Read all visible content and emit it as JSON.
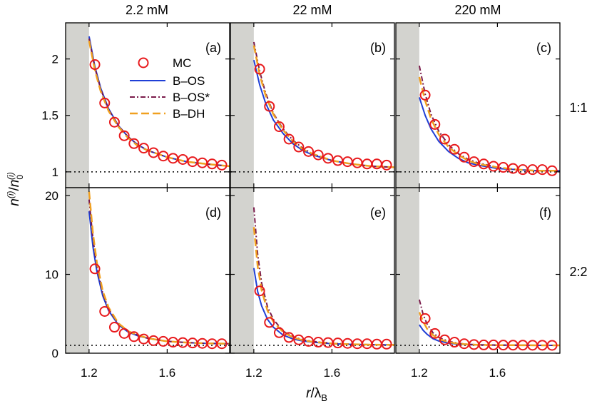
{
  "figure": {
    "column_titles": [
      "2.2 mM",
      "22 mM",
      "220 mM"
    ],
    "row_labels": [
      "1:1",
      "2:2"
    ],
    "ylabel": "n(i)/n0(i)",
    "xlabel": "r/λB",
    "legend": [
      "MC",
      "B–OS",
      "B–OS*",
      "B–DH"
    ]
  },
  "colors": {
    "MC": "#e8191c",
    "B-OS": "#1f3fd6",
    "B-OS*": "#7a1a4a",
    "B-DH": "#f0a020",
    "excluded_region": "#d3d3cf",
    "reference_line": "#000000"
  },
  "chart_data": [
    {
      "type": "line",
      "panel": "(a)",
      "column": "2.2 mM",
      "row": "1:1",
      "xlim": [
        1.08,
        1.92
      ],
      "ylim": [
        0.86,
        2.32
      ],
      "xticks": [
        1.2,
        1.6
      ],
      "yticks": [
        1,
        1.5,
        2
      ],
      "excluded_x": [
        1.08,
        1.2
      ],
      "reference_y": 1,
      "series": [
        {
          "name": "MC",
          "style": "circles",
          "x": [
            1.23,
            1.28,
            1.33,
            1.38,
            1.43,
            1.48,
            1.53,
            1.58,
            1.63,
            1.68,
            1.73,
            1.78,
            1.83,
            1.88
          ],
          "y": [
            1.95,
            1.61,
            1.44,
            1.32,
            1.25,
            1.21,
            1.17,
            1.14,
            1.12,
            1.11,
            1.09,
            1.08,
            1.07,
            1.06
          ]
        },
        {
          "name": "B–OS",
          "style": "solid",
          "x": [
            1.2,
            1.23,
            1.26,
            1.3,
            1.35,
            1.4,
            1.45,
            1.5,
            1.6,
            1.7,
            1.8,
            1.92
          ],
          "y": [
            2.2,
            1.93,
            1.74,
            1.56,
            1.41,
            1.31,
            1.24,
            1.19,
            1.13,
            1.09,
            1.07,
            1.05
          ]
        },
        {
          "name": "B–OS*",
          "style": "dashdot",
          "x": [
            1.2,
            1.23,
            1.26,
            1.3,
            1.35,
            1.4,
            1.45,
            1.5,
            1.6,
            1.7,
            1.8,
            1.92
          ],
          "y": [
            2.18,
            1.92,
            1.73,
            1.55,
            1.41,
            1.31,
            1.24,
            1.19,
            1.13,
            1.09,
            1.07,
            1.05
          ]
        },
        {
          "name": "B–DH",
          "style": "dashed",
          "x": [
            1.2,
            1.23,
            1.26,
            1.3,
            1.35,
            1.4,
            1.45,
            1.5,
            1.6,
            1.7,
            1.8,
            1.92
          ],
          "y": [
            2.16,
            1.9,
            1.71,
            1.54,
            1.4,
            1.3,
            1.23,
            1.19,
            1.13,
            1.09,
            1.07,
            1.05
          ]
        }
      ]
    },
    {
      "type": "line",
      "panel": "(b)",
      "column": "22 mM",
      "row": "1:1",
      "xlim": [
        1.08,
        1.92
      ],
      "ylim": [
        0.86,
        2.32
      ],
      "xticks": [
        1.2,
        1.6
      ],
      "yticks": [
        1,
        1.5,
        2
      ],
      "excluded_x": [
        1.08,
        1.2
      ],
      "reference_y": 1,
      "series": [
        {
          "name": "MC",
          "style": "circles",
          "x": [
            1.23,
            1.28,
            1.33,
            1.38,
            1.43,
            1.48,
            1.53,
            1.58,
            1.63,
            1.68,
            1.73,
            1.78,
            1.83,
            1.88
          ],
          "y": [
            1.91,
            1.58,
            1.4,
            1.29,
            1.22,
            1.18,
            1.15,
            1.12,
            1.1,
            1.09,
            1.08,
            1.07,
            1.07,
            1.06
          ]
        },
        {
          "name": "B–OS",
          "style": "solid",
          "x": [
            1.2,
            1.23,
            1.26,
            1.3,
            1.35,
            1.4,
            1.45,
            1.5,
            1.6,
            1.7,
            1.8,
            1.92
          ],
          "y": [
            1.99,
            1.77,
            1.61,
            1.46,
            1.34,
            1.25,
            1.19,
            1.15,
            1.1,
            1.07,
            1.05,
            1.04
          ]
        },
        {
          "name": "B–OS*",
          "style": "dashdot",
          "x": [
            1.2,
            1.23,
            1.26,
            1.3,
            1.35,
            1.4,
            1.45,
            1.5,
            1.6,
            1.7,
            1.8,
            1.92
          ],
          "y": [
            2.15,
            1.89,
            1.7,
            1.52,
            1.38,
            1.28,
            1.21,
            1.16,
            1.1,
            1.07,
            1.05,
            1.04
          ]
        },
        {
          "name": "B–DH",
          "style": "dashed",
          "x": [
            1.2,
            1.23,
            1.26,
            1.3,
            1.35,
            1.4,
            1.45,
            1.5,
            1.6,
            1.7,
            1.8,
            1.92
          ],
          "y": [
            2.12,
            1.86,
            1.68,
            1.51,
            1.37,
            1.27,
            1.2,
            1.16,
            1.1,
            1.07,
            1.05,
            1.04
          ]
        }
      ]
    },
    {
      "type": "line",
      "panel": "(c)",
      "column": "220 mM",
      "row": "1:1",
      "xlim": [
        1.08,
        1.92
      ],
      "ylim": [
        0.86,
        2.32
      ],
      "xticks": [
        1.2,
        1.6
      ],
      "yticks": [
        1,
        1.5,
        2
      ],
      "excluded_x": [
        1.08,
        1.2
      ],
      "reference_y": 1,
      "series": [
        {
          "name": "MC",
          "style": "circles",
          "x": [
            1.23,
            1.28,
            1.33,
            1.38,
            1.43,
            1.48,
            1.53,
            1.58,
            1.63,
            1.68,
            1.73,
            1.78,
            1.83,
            1.88
          ],
          "y": [
            1.68,
            1.42,
            1.29,
            1.2,
            1.13,
            1.09,
            1.07,
            1.05,
            1.04,
            1.03,
            1.02,
            1.02,
            1.02,
            1.01
          ]
        },
        {
          "name": "B–OS",
          "style": "solid",
          "x": [
            1.2,
            1.23,
            1.26,
            1.3,
            1.35,
            1.4,
            1.45,
            1.5,
            1.6,
            1.7,
            1.8,
            1.92
          ],
          "y": [
            1.66,
            1.5,
            1.38,
            1.27,
            1.18,
            1.12,
            1.08,
            1.06,
            1.03,
            1.02,
            1.01,
            1.01
          ]
        },
        {
          "name": "B–OS*",
          "style": "dashdot",
          "x": [
            1.2,
            1.23,
            1.26,
            1.3,
            1.35,
            1.4,
            1.45,
            1.5,
            1.6,
            1.7,
            1.8,
            1.92
          ],
          "y": [
            1.94,
            1.69,
            1.51,
            1.36,
            1.24,
            1.16,
            1.11,
            1.08,
            1.04,
            1.02,
            1.01,
            1.01
          ]
        },
        {
          "name": "B–DH",
          "style": "dashed",
          "x": [
            1.2,
            1.23,
            1.26,
            1.3,
            1.35,
            1.4,
            1.45,
            1.5,
            1.6,
            1.7,
            1.8,
            1.92
          ],
          "y": [
            1.84,
            1.63,
            1.47,
            1.33,
            1.22,
            1.15,
            1.1,
            1.07,
            1.04,
            1.02,
            1.01,
            1.01
          ]
        }
      ]
    },
    {
      "type": "line",
      "panel": "(d)",
      "column": "2.2 mM",
      "row": "2:2",
      "xlim": [
        1.08,
        1.92
      ],
      "ylim": [
        0,
        21
      ],
      "xticks": [
        1.2,
        1.6
      ],
      "yticks": [
        0,
        10,
        20
      ],
      "excluded_x": [
        1.08,
        1.2
      ],
      "reference_y": 1,
      "series": [
        {
          "name": "MC",
          "style": "circles",
          "x": [
            1.23,
            1.28,
            1.33,
            1.38,
            1.43,
            1.48,
            1.53,
            1.58,
            1.63,
            1.68,
            1.73,
            1.78,
            1.83,
            1.88
          ],
          "y": [
            10.7,
            5.3,
            3.3,
            2.5,
            2.1,
            1.8,
            1.6,
            1.5,
            1.4,
            1.35,
            1.3,
            1.25,
            1.2,
            1.2
          ]
        },
        {
          "name": "B–OS",
          "style": "solid",
          "x": [
            1.2,
            1.22,
            1.24,
            1.27,
            1.3,
            1.35,
            1.4,
            1.45,
            1.5,
            1.6,
            1.7,
            1.8,
            1.92
          ],
          "y": [
            18,
            13.5,
            10.4,
            7.3,
            5.4,
            3.6,
            2.7,
            2.2,
            1.9,
            1.5,
            1.35,
            1.25,
            1.2
          ]
        },
        {
          "name": "B–OS*",
          "style": "dashdot",
          "x": [
            1.2,
            1.22,
            1.24,
            1.27,
            1.3,
            1.35,
            1.4,
            1.45,
            1.5,
            1.6,
            1.7,
            1.8,
            1.92
          ],
          "y": [
            19.5,
            14.5,
            11,
            7.6,
            5.6,
            3.7,
            2.8,
            2.3,
            1.9,
            1.5,
            1.35,
            1.25,
            1.2
          ]
        },
        {
          "name": "B–DH",
          "style": "dashed",
          "x": [
            1.2,
            1.22,
            1.24,
            1.27,
            1.3,
            1.35,
            1.4,
            1.45,
            1.5,
            1.6,
            1.7,
            1.8,
            1.92
          ],
          "y": [
            20.5,
            15.2,
            11.5,
            7.9,
            5.8,
            3.8,
            2.8,
            2.3,
            1.9,
            1.5,
            1.35,
            1.25,
            1.2
          ]
        }
      ]
    },
    {
      "type": "line",
      "panel": "(e)",
      "column": "22 mM",
      "row": "2:2",
      "xlim": [
        1.08,
        1.92
      ],
      "ylim": [
        0,
        21
      ],
      "xticks": [
        1.2,
        1.6
      ],
      "yticks": [
        0,
        10,
        20
      ],
      "excluded_x": [
        1.08,
        1.2
      ],
      "reference_y": 1,
      "series": [
        {
          "name": "MC",
          "style": "circles",
          "x": [
            1.23,
            1.28,
            1.33,
            1.38,
            1.43,
            1.48,
            1.53,
            1.58,
            1.63,
            1.68,
            1.73,
            1.78,
            1.83,
            1.88
          ],
          "y": [
            7.9,
            3.9,
            2.6,
            2.0,
            1.7,
            1.5,
            1.4,
            1.35,
            1.3,
            1.25,
            1.2,
            1.2,
            1.15,
            1.15
          ]
        },
        {
          "name": "B–OS",
          "style": "solid",
          "x": [
            1.2,
            1.22,
            1.24,
            1.27,
            1.3,
            1.35,
            1.4,
            1.45,
            1.5,
            1.6,
            1.7,
            1.8,
            1.92
          ],
          "y": [
            10.8,
            7.8,
            6,
            4.3,
            3.3,
            2.3,
            1.8,
            1.55,
            1.4,
            1.2,
            1.12,
            1.08,
            1.05
          ]
        },
        {
          "name": "B–OS*",
          "style": "dashdot",
          "x": [
            1.2,
            1.22,
            1.24,
            1.27,
            1.3,
            1.35,
            1.4,
            1.45,
            1.5,
            1.6,
            1.7,
            1.8,
            1.92
          ],
          "y": [
            18.5,
            12.5,
            8.9,
            5.9,
            4.3,
            2.8,
            2.1,
            1.7,
            1.5,
            1.25,
            1.14,
            1.09,
            1.05
          ]
        },
        {
          "name": "B–DH",
          "style": "dashed",
          "x": [
            1.2,
            1.22,
            1.24,
            1.27,
            1.3,
            1.35,
            1.4,
            1.45,
            1.5,
            1.6,
            1.7,
            1.8,
            1.92
          ],
          "y": [
            16,
            11,
            8,
            5.4,
            4,
            2.7,
            2,
            1.65,
            1.45,
            1.22,
            1.13,
            1.08,
            1.05
          ]
        }
      ]
    },
    {
      "type": "line",
      "panel": "(f)",
      "column": "220 mM",
      "row": "2:2",
      "xlim": [
        1.08,
        1.92
      ],
      "ylim": [
        0,
        21
      ],
      "xticks": [
        1.2,
        1.6
      ],
      "yticks": [
        0,
        10,
        20
      ],
      "excluded_x": [
        1.08,
        1.2
      ],
      "reference_y": 1,
      "series": [
        {
          "name": "MC",
          "style": "circles",
          "x": [
            1.23,
            1.28,
            1.33,
            1.38,
            1.43,
            1.48,
            1.53,
            1.58,
            1.63,
            1.68,
            1.73,
            1.78,
            1.83,
            1.88
          ],
          "y": [
            4.4,
            2.5,
            1.7,
            1.4,
            1.2,
            1.1,
            1.05,
            1.05,
            1.03,
            1.02,
            1.02,
            1.01,
            1.01,
            1.0
          ]
        },
        {
          "name": "B–OS",
          "style": "solid",
          "x": [
            1.2,
            1.22,
            1.24,
            1.27,
            1.3,
            1.35,
            1.4,
            1.45,
            1.5,
            1.6,
            1.7,
            1.8,
            1.92
          ],
          "y": [
            3.6,
            2.9,
            2.4,
            1.85,
            1.55,
            1.28,
            1.15,
            1.08,
            1.05,
            1.02,
            1.01,
            1.0,
            1.0
          ]
        },
        {
          "name": "B–OS*",
          "style": "dashdot",
          "x": [
            1.2,
            1.22,
            1.24,
            1.27,
            1.3,
            1.35,
            1.4,
            1.45,
            1.5,
            1.6,
            1.7,
            1.8,
            1.92
          ],
          "y": [
            6.8,
            4.9,
            3.7,
            2.6,
            2,
            1.5,
            1.25,
            1.13,
            1.07,
            1.03,
            1.01,
            1.0,
            1.0
          ]
        },
        {
          "name": "B–DH",
          "style": "dashed",
          "x": [
            1.2,
            1.22,
            1.24,
            1.27,
            1.3,
            1.35,
            1.4,
            1.45,
            1.5,
            1.6,
            1.7,
            1.8,
            1.92
          ],
          "y": [
            5.2,
            4,
            3.1,
            2.3,
            1.8,
            1.4,
            1.2,
            1.1,
            1.06,
            1.02,
            1.01,
            1.0,
            1.0
          ]
        }
      ]
    }
  ]
}
